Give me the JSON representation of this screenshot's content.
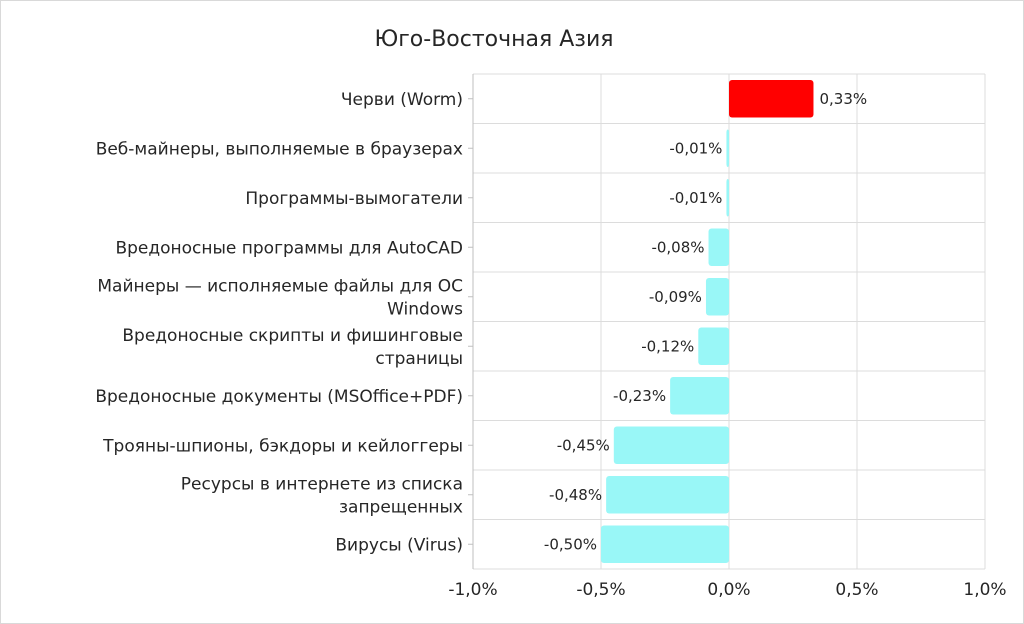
{
  "chart_data": {
    "type": "bar",
    "orientation": "horizontal",
    "title": "Юго-Восточная Азия",
    "categories": [
      "Черви (Worm)",
      "Веб-майнеры, выполняемые в браузерах",
      "Программы-вымогатели",
      "Вредоносные программы для AutoCAD",
      "Майнеры — исполняемые файлы для ОС Windows",
      "Вредоносные скрипты и фишинговые страницы",
      "Вредоносные документы (MSOffice+PDF)",
      "Трояны-шпионы, бэкдоры и кейлоггеры",
      "Ресурсы в интернете из списка запрещенных",
      "Вирусы (Virus)"
    ],
    "category_lines": [
      [
        "Черви (Worm)"
      ],
      [
        "Веб-майнеры, выполняемые в браузерах"
      ],
      [
        "Программы-вымогатели"
      ],
      [
        "Вредоносные программы для AutoCAD"
      ],
      [
        "Майнеры — исполняемые файлы для ОС",
        "Windows"
      ],
      [
        "Вредоносные скрипты и фишинговые",
        "страницы"
      ],
      [
        "Вредоносные документы (MSOffice+PDF)"
      ],
      [
        "Трояны-шпионы, бэкдоры и кейлоггеры"
      ],
      [
        "Ресурсы в интернете из списка",
        "запрещенных"
      ],
      [
        "Вирусы (Virus)"
      ]
    ],
    "values": [
      0.33,
      -0.01,
      -0.01,
      -0.08,
      -0.09,
      -0.12,
      -0.23,
      -0.45,
      -0.48,
      -0.5
    ],
    "data_labels": [
      "0,33%",
      "-0,01%",
      "-0,01%",
      "-0,08%",
      "-0,09%",
      "-0,12%",
      "-0,23%",
      "-0,45%",
      "-0,48%",
      "-0,50%"
    ],
    "xlim": [
      -1.0,
      1.0
    ],
    "x_ticks": [
      -1.0,
      -0.5,
      0.0,
      0.5,
      1.0
    ],
    "x_tick_labels": [
      "-1,0%",
      "-0,5%",
      "0,0%",
      "0,5%",
      "1,0%"
    ],
    "grid": true,
    "colors": {
      "positive": "#ff0000",
      "negative": "#99f7f7"
    }
  }
}
